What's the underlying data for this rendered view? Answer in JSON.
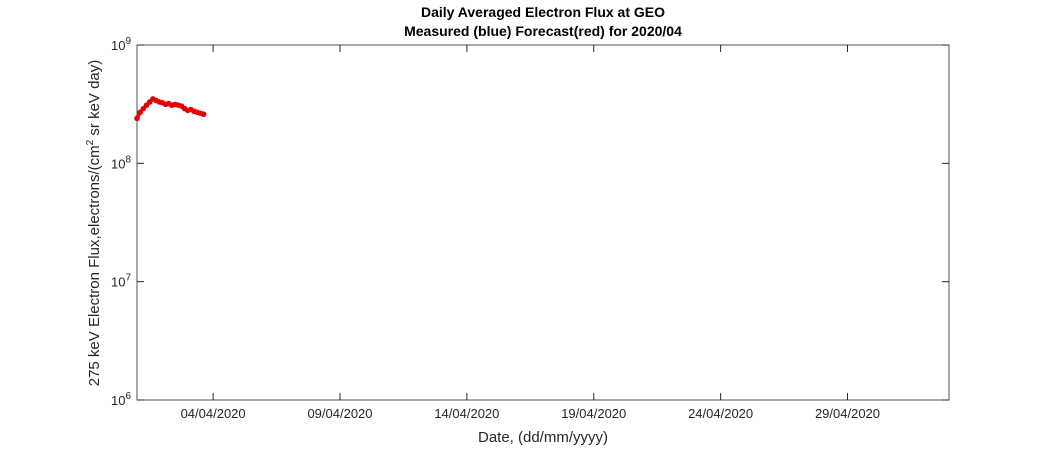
{
  "chart_data": {
    "type": "line",
    "title": "Daily Averaged Electron Flux at GEO",
    "subtitle": "Measured (blue) Forecast(red) for 2020/04",
    "xlabel": "Date, (dd/mm/yyyy)",
    "ylabel": "275 keV Electron Flux,electrons/(cm^2 sr keV day)",
    "log_y": true,
    "x": [
      "2020-04-01T00:00",
      "2020-04-01T03:00",
      "2020-04-01T06:00",
      "2020-04-01T09:00",
      "2020-04-01T12:00",
      "2020-04-01T15:00",
      "2020-04-01T18:00",
      "2020-04-01T21:00",
      "2020-04-02T00:00",
      "2020-04-02T03:00",
      "2020-04-02T06:00",
      "2020-04-02T09:00",
      "2020-04-02T12:00",
      "2020-04-02T15:00",
      "2020-04-02T18:00",
      "2020-04-02T21:00",
      "2020-04-03T00:00",
      "2020-04-03T03:00",
      "2020-04-03T06:00",
      "2020-04-03T09:00",
      "2020-04-03T12:00",
      "2020-04-03T15:00"
    ],
    "series": [
      {
        "name": "Forecast",
        "color": "#e60000",
        "values": [
          240000000,
          270000000,
          290000000,
          310000000,
          330000000,
          350000000,
          340000000,
          330000000,
          325000000,
          315000000,
          320000000,
          310000000,
          315000000,
          310000000,
          305000000,
          290000000,
          280000000,
          285000000,
          275000000,
          270000000,
          265000000,
          260000000
        ]
      }
    ],
    "xlim": [
      "2020-04-01T00:00",
      "2020-05-03T00:00"
    ],
    "xticks": [
      {
        "value": "2020-04-04T00:00",
        "label": "04/04/2020"
      },
      {
        "value": "2020-04-09T00:00",
        "label": "09/04/2020"
      },
      {
        "value": "2020-04-14T00:00",
        "label": "14/04/2020"
      },
      {
        "value": "2020-04-19T00:00",
        "label": "19/04/2020"
      },
      {
        "value": "2020-04-24T00:00",
        "label": "24/04/2020"
      },
      {
        "value": "2020-04-29T00:00",
        "label": "29/04/2020"
      }
    ],
    "ylim": [
      1000000,
      1000000000
    ],
    "yticks": [
      {
        "value": 1000000,
        "label": "10^6"
      },
      {
        "value": 10000000,
        "label": "10^7"
      },
      {
        "value": 100000000,
        "label": "10^8"
      },
      {
        "value": 1000000000,
        "label": "10^9"
      }
    ]
  }
}
